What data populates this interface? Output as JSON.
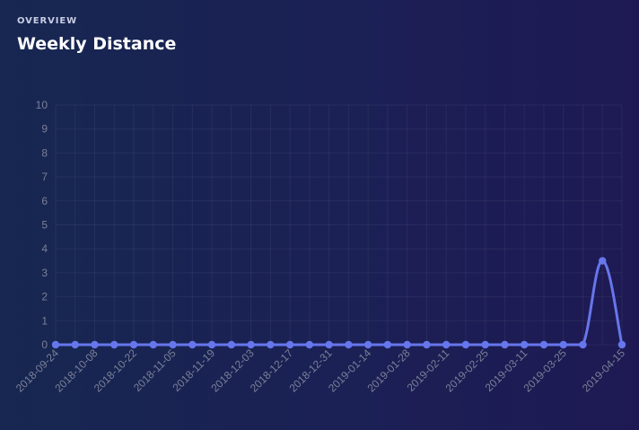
{
  "header": {
    "overline": "OVERVIEW",
    "title": "Weekly Distance"
  },
  "colors": {
    "line": "#6676ec",
    "grid": "rgba(255,255,255,0.06)",
    "tick_text": "#7a8097"
  },
  "chart_data": {
    "type": "line",
    "title": "Weekly Distance",
    "xlabel": "",
    "ylabel": "",
    "ylim": [
      0,
      10
    ],
    "y_ticks": [
      0,
      1,
      2,
      3,
      4,
      5,
      6,
      7,
      8,
      9,
      10
    ],
    "grid": true,
    "legend": "none",
    "x": [
      "2018-09-24",
      "2018-10-01",
      "2018-10-08",
      "2018-10-15",
      "2018-10-22",
      "2018-10-29",
      "2018-11-05",
      "2018-11-12",
      "2018-11-19",
      "2018-11-26",
      "2018-12-03",
      "2018-12-10",
      "2018-12-17",
      "2018-12-24",
      "2018-12-31",
      "2019-01-07",
      "2019-01-14",
      "2019-01-21",
      "2019-01-28",
      "2019-02-04",
      "2019-02-11",
      "2019-02-18",
      "2019-02-25",
      "2019-03-04",
      "2019-03-11",
      "2019-03-18",
      "2019-03-25",
      "2019-04-01",
      "2019-04-08",
      "2019-04-15"
    ],
    "x_tick_labels": [
      "2018-09-24",
      "2018-10-08",
      "2018-10-22",
      "2018-11-05",
      "2018-11-19",
      "2018-12-03",
      "2018-12-17",
      "2018-12-31",
      "2019-01-14",
      "2019-01-28",
      "2019-02-11",
      "2019-02-25",
      "2019-03-11",
      "2019-03-25",
      "2019-04-15"
    ],
    "values": [
      0,
      0,
      0,
      0,
      0,
      0,
      0,
      0,
      0,
      0,
      0,
      0,
      0,
      0,
      0,
      0,
      0,
      0,
      0,
      0,
      0,
      0,
      0,
      0,
      0,
      0,
      0,
      0,
      3.5,
      0
    ]
  }
}
